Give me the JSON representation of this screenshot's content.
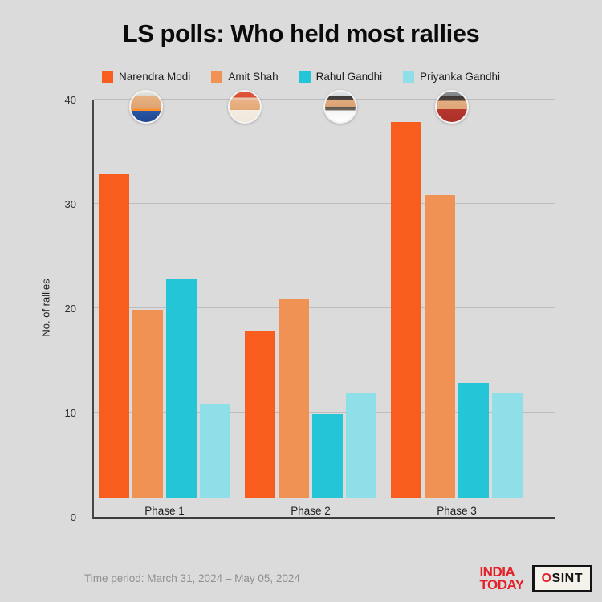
{
  "title": "LS polls: Who held most rallies",
  "people": [
    {
      "label": "Narendra Modi",
      "color": "#F95D1D",
      "avatar": "narendra-modi"
    },
    {
      "label": "Amit Shah",
      "color": "#EF9253",
      "avatar": "amit-shah"
    },
    {
      "label": "Rahul Gandhi",
      "color": "#25C5D8",
      "avatar": "rahul-gandhi"
    },
    {
      "label": "Priyanka Gandhi",
      "color": "#8EDFE7",
      "avatar": "priyanka-gandhi"
    }
  ],
  "chart_data": {
    "type": "bar",
    "title": "LS polls: Who held most rallies",
    "categories": [
      "Phase 1",
      "Phase 2",
      "Phase 3"
    ],
    "series": [
      {
        "name": "Narendra Modi",
        "color": "#F95D1D",
        "values": [
          31,
          16,
          36
        ]
      },
      {
        "name": "Amit Shah",
        "color": "#EF9253",
        "values": [
          18,
          19,
          29
        ]
      },
      {
        "name": "Rahul Gandhi",
        "color": "#25C5D8",
        "values": [
          21,
          8,
          11
        ]
      },
      {
        "name": "Priyanka Gandhi",
        "color": "#8EDFE7",
        "values": [
          9,
          10,
          10
        ]
      }
    ],
    "xlabel": "",
    "ylabel": "No. of rallies",
    "ylim": [
      0,
      40
    ],
    "yticks": [
      0,
      10,
      20,
      30,
      40
    ],
    "grid": true,
    "legend_position": "top"
  },
  "footer": {
    "time_period": "Time period: March 31, 2024 – May 05, 2024",
    "brand1_line1": "INDIA",
    "brand1_line2": "TODAY",
    "brand2": "OSINT"
  }
}
